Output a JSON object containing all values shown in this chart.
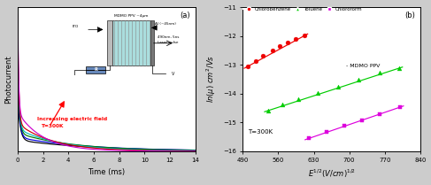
{
  "left": {
    "xlabel": "Time (ms)",
    "ylabel": "Photocurrent",
    "xlim": [
      0,
      14
    ],
    "xticks": [
      0,
      2,
      4,
      6,
      8,
      10,
      12,
      14
    ],
    "curves": [
      {
        "color": "#000000",
        "spike": 0.38,
        "plateau": 0.08,
        "tau1": 0.18,
        "tau2": 6.0
      },
      {
        "color": "#0000dd",
        "spike": 0.48,
        "plateau": 0.1,
        "tau1": 0.15,
        "tau2": 5.5
      },
      {
        "color": "#007700",
        "spike": 0.6,
        "plateau": 0.13,
        "tau1": 0.13,
        "tau2": 4.5
      },
      {
        "color": "#00bbbb",
        "spike": 0.72,
        "plateau": 0.16,
        "tau1": 0.11,
        "tau2": 3.5
      },
      {
        "color": "#cc0000",
        "spike": 0.85,
        "plateau": 0.2,
        "tau1": 0.09,
        "tau2": 2.8
      },
      {
        "color": "#cc00cc",
        "spike": 1.0,
        "plateau": 0.28,
        "tau1": 0.07,
        "tau2": 2.0
      }
    ]
  },
  "right": {
    "xlabel": "E^{1/2}(V/cm)^{1/2}",
    "ylabel": "ln(μ) cm²/Vs",
    "xlim": [
      490,
      840
    ],
    "ylim": [
      -16,
      -11
    ],
    "xticks": [
      490,
      560,
      630,
      700,
      770,
      840
    ],
    "yticks": [
      -16,
      -15,
      -14,
      -13,
      -12,
      -11
    ],
    "series": [
      {
        "label": "Chlorobenzene",
        "color": "#ee0000",
        "marker": "o",
        "x": [
          500,
          515,
          530,
          548,
          562,
          578,
          595,
          612
        ],
        "y": [
          -13.05,
          -12.87,
          -12.68,
          -12.5,
          -12.35,
          -12.22,
          -12.1,
          -11.98
        ],
        "fit_x": [
          493,
          618
        ],
        "fit_y": [
          -13.12,
          -11.93
        ]
      },
      {
        "label": "Toluene",
        "color": "#00cc00",
        "marker": "^",
        "x": [
          540,
          568,
          600,
          638,
          678,
          718,
          760,
          798
        ],
        "y": [
          -14.58,
          -14.38,
          -14.18,
          -13.97,
          -13.76,
          -13.52,
          -13.28,
          -13.12
        ],
        "fit_x": [
          533,
          805
        ],
        "fit_y": [
          -14.63,
          -13.08
        ]
      },
      {
        "label": "Chloroform",
        "color": "#dd00dd",
        "marker": "s",
        "x": [
          620,
          655,
          690,
          725,
          760,
          800
        ],
        "y": [
          -15.55,
          -15.33,
          -15.12,
          -14.93,
          -14.7,
          -14.47
        ],
        "fit_x": [
          613,
          807
        ],
        "fit_y": [
          -15.6,
          -14.43
        ]
      }
    ]
  }
}
